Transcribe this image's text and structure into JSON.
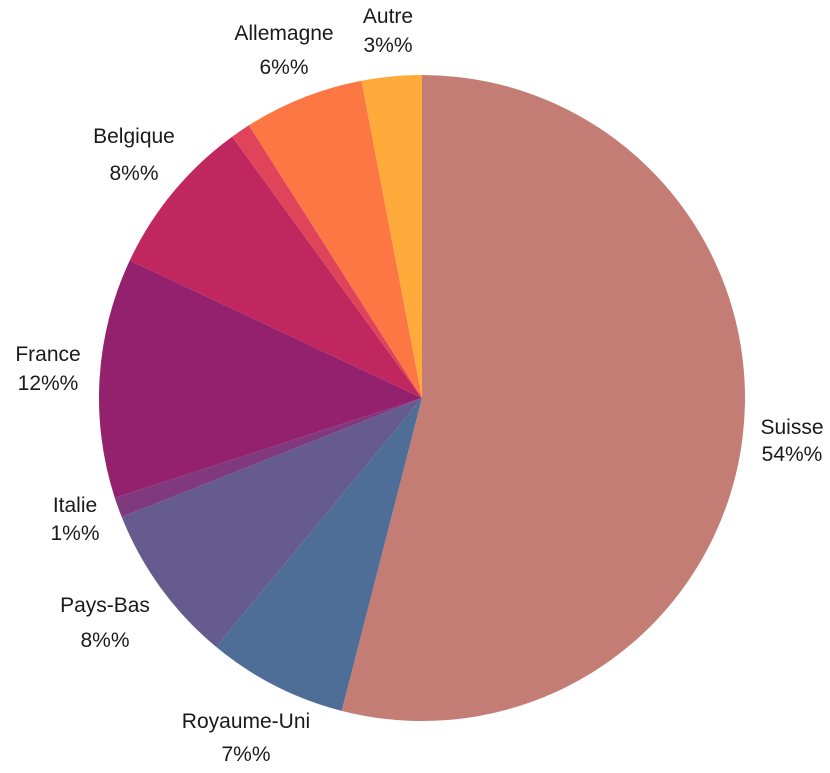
{
  "chart_data": {
    "type": "pie",
    "title": "",
    "slices": [
      {
        "name": "Suisse",
        "value": 54,
        "label": "54%%",
        "color": "#c37d74"
      },
      {
        "name": "Royaume-Uni",
        "value": 7,
        "label": "7%%",
        "color": "#4e6e97"
      },
      {
        "name": "Pays-Bas",
        "value": 8,
        "label": "8%%",
        "color": "#655b8f"
      },
      {
        "name": "Italie",
        "value": 1,
        "label": "1%%",
        "color": "#81397e"
      },
      {
        "name": "France",
        "value": 12,
        "label": "12%%",
        "color": "#94216e"
      },
      {
        "name": "Belgique",
        "value": 8,
        "label": "8%%",
        "color": "#c0275e"
      },
      {
        "name": "",
        "value": 1,
        "label": "",
        "color": "#e0445a"
      },
      {
        "name": "Allemagne",
        "value": 6,
        "label": "6%%",
        "color": "#fc7744"
      },
      {
        "name": "Autre",
        "value": 3,
        "label": "3%%",
        "color": "#feab3c"
      }
    ]
  }
}
